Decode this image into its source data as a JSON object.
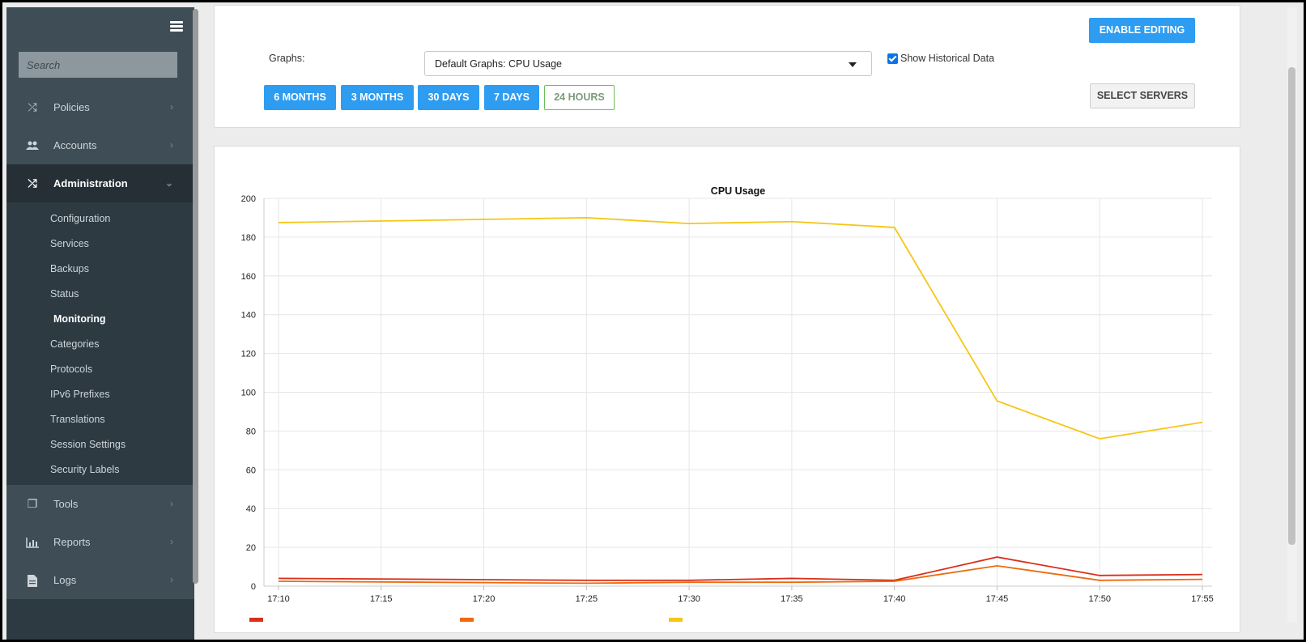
{
  "sidebar": {
    "search_placeholder": "Search",
    "items_top": [
      {
        "label": "Policies",
        "icon": "shuffle-icon"
      },
      {
        "label": "Accounts",
        "icon": "users-icon"
      }
    ],
    "active": {
      "label": "Administration",
      "icon": "shuffle-icon"
    },
    "subitems": [
      "Configuration",
      "Services",
      "Backups",
      "Status",
      "Monitoring",
      "Categories",
      "Protocols",
      "IPv6 Prefixes",
      "Translations",
      "Session Settings",
      "Security Labels"
    ],
    "current_subitem": "Monitoring",
    "items_bottom": [
      {
        "label": "Tools",
        "icon": "tools-icon"
      },
      {
        "label": "Reports",
        "icon": "bar-chart-icon"
      },
      {
        "label": "Logs",
        "icon": "file-icon"
      }
    ]
  },
  "controls": {
    "graphs_label": "Graphs:",
    "graph_select_value": "Default Graphs: CPU Usage",
    "show_historical_label": "Show Historical Data",
    "show_historical_checked": true,
    "enable_editing": "ENABLE EDITING",
    "select_servers": "SELECT SERVERS",
    "ranges": [
      "6 MONTHS",
      "3 MONTHS",
      "30 DAYS",
      "7 DAYS",
      "24 HOURS"
    ],
    "selected_range": "24 HOURS"
  },
  "colors": {
    "accent_blue": "#2d9cf1",
    "active_green": "#6bc14a",
    "series_red": "#d9301c",
    "series_orange": "#ee6a0e",
    "series_yellow": "#f5c618"
  },
  "chart_data": {
    "type": "line",
    "title": "CPU Usage",
    "x": [
      "17:10",
      "17:15",
      "17:20",
      "17:25",
      "17:30",
      "17:35",
      "17:40",
      "17:45",
      "17:50",
      "17:55"
    ],
    "ylim": [
      0,
      200
    ],
    "yticks": [
      0,
      20,
      40,
      60,
      80,
      100,
      120,
      140,
      160,
      180,
      200
    ],
    "grid": true,
    "legend_position": "bottom",
    "series": [
      {
        "color": "#f5c618",
        "points": [
          [
            "17:10",
            187.5
          ],
          [
            "17:25",
            190
          ],
          [
            "17:30",
            187
          ],
          [
            "17:35",
            188
          ],
          [
            "17:40",
            185
          ],
          [
            "17:45",
            95.5
          ],
          [
            "17:50",
            76
          ],
          [
            "17:55",
            84.5
          ]
        ]
      },
      {
        "color": "#d9301c",
        "points": [
          [
            "17:10",
            4
          ],
          [
            "17:25",
            3
          ],
          [
            "17:30",
            3
          ],
          [
            "17:35",
            4
          ],
          [
            "17:40",
            3
          ],
          [
            "17:45",
            15
          ],
          [
            "17:50",
            5.5
          ],
          [
            "17:55",
            6
          ]
        ]
      },
      {
        "color": "#ee6a0e",
        "points": [
          [
            "17:10",
            2.5
          ],
          [
            "17:25",
            1.5
          ],
          [
            "17:30",
            2
          ],
          [
            "17:35",
            2
          ],
          [
            "17:40",
            2.5
          ],
          [
            "17:45",
            10.5
          ],
          [
            "17:50",
            3
          ],
          [
            "17:55",
            3.5
          ]
        ]
      }
    ]
  }
}
